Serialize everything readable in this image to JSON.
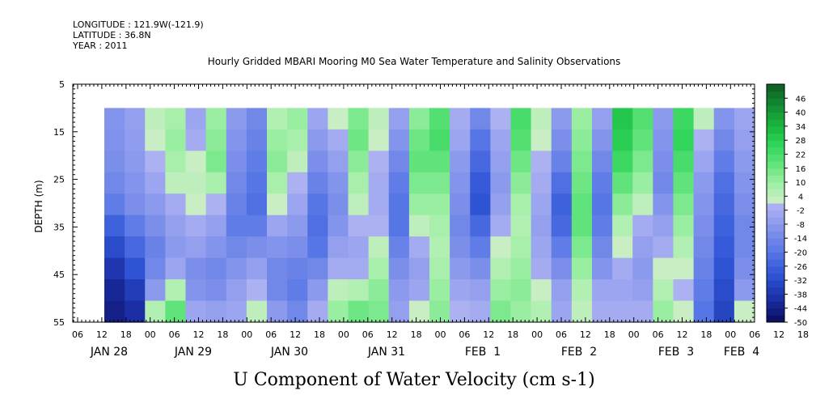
{
  "header": {
    "longitude": "LONGITUDE : 121.9W(-121.9)",
    "latitude": "LATITUDE : 36.8N",
    "year": "YEAR : 2011"
  },
  "chart_data": {
    "type": "heatmap",
    "title": "Hourly Gridded MBARI Mooring M0 Sea Water Temperature and Salinity Observations",
    "xlabel": "U Component of Water Velocity (cm s-1)",
    "ylabel": "DEPTH (m)",
    "ylim": [
      55,
      5
    ],
    "y_ticks": [
      5,
      15,
      25,
      35,
      45,
      55
    ],
    "data_depth_range": [
      10,
      55
    ],
    "x_hour_ticks": [
      "06",
      "12",
      "18",
      "00",
      "06",
      "12",
      "18",
      "00",
      "06",
      "12",
      "18",
      "00",
      "06",
      "12",
      "18",
      "00",
      "06",
      "12",
      "18",
      "00",
      "06",
      "12",
      "18",
      "00",
      "06",
      "12",
      "18",
      "00",
      "06",
      "12",
      "18",
      "00",
      "06"
    ],
    "x_day_labels": [
      "JAN 28",
      "JAN 29",
      "JAN 30",
      "JAN 31",
      "FEB  1",
      "FEB  2",
      "FEB  3",
      "FEB  4"
    ],
    "data_start": "JAN 28 12",
    "colorbar": {
      "labels": [
        "46",
        "40",
        "34",
        "28",
        "22",
        "16",
        "10",
        "4",
        "-2",
        "-8",
        "-14",
        "-20",
        "-26",
        "-32",
        "-38",
        "-44",
        "-50"
      ],
      "range": [
        -50,
        52
      ],
      "step": 3,
      "negative_colors": [
        "#0b0b5e",
        "#1b2fa6",
        "#2f55d6",
        "#5a78e6",
        "#8796ec",
        "#b0b4f2"
      ],
      "positive_colors": [
        "#cfeec8",
        "#9eefa4",
        "#5fe37a",
        "#2ed458",
        "#18b23c",
        "#138a33",
        "#0e5b22"
      ]
    },
    "columns": [
      {
        "v": [
          -10,
          -11,
          -12,
          -14,
          -18,
          -26,
          -32,
          -38,
          -42,
          -44
        ]
      },
      {
        "v": [
          -6,
          -7,
          -8,
          -10,
          -12,
          -18,
          -24,
          -30,
          -36,
          -40
        ]
      },
      {
        "v": [
          4,
          2,
          0,
          -4,
          -8,
          -12,
          -16,
          -14,
          -8,
          6
        ]
      },
      {
        "v": [
          8,
          10,
          8,
          4,
          -2,
          -6,
          -8,
          -4,
          6,
          18
        ]
      },
      {
        "v": [
          -4,
          -2,
          2,
          4,
          2,
          -2,
          -6,
          -12,
          -10,
          -4
        ]
      },
      {
        "v": [
          10,
          12,
          14,
          8,
          0,
          -6,
          -10,
          -14,
          -12,
          -6
        ]
      },
      {
        "v": [
          -8,
          -10,
          -12,
          -14,
          -16,
          -18,
          -14,
          -10,
          -6,
          -4
        ]
      },
      {
        "v": [
          -14,
          -16,
          -18,
          -20,
          -22,
          -18,
          -12,
          -6,
          0,
          4
        ]
      },
      {
        "v": [
          6,
          10,
          12,
          8,
          2,
          -4,
          -10,
          -14,
          -14,
          -8
        ]
      },
      {
        "v": [
          10,
          8,
          4,
          0,
          -4,
          -8,
          -12,
          -16,
          -18,
          -14
        ]
      },
      {
        "v": [
          -4,
          -8,
          -12,
          -16,
          -20,
          -22,
          -20,
          -14,
          -8,
          -2
        ]
      },
      {
        "v": [
          2,
          -2,
          -6,
          -10,
          -12,
          -10,
          -6,
          -2,
          4,
          10
        ]
      },
      {
        "v": [
          14,
          16,
          12,
          8,
          4,
          0,
          -4,
          -2,
          6,
          16
        ]
      },
      {
        "v": [
          4,
          2,
          0,
          -2,
          -2,
          0,
          4,
          8,
          12,
          14
        ]
      },
      {
        "v": [
          -6,
          -10,
          -14,
          -18,
          -20,
          -20,
          -16,
          -12,
          -8,
          -6
        ]
      },
      {
        "v": [
          12,
          16,
          18,
          14,
          10,
          4,
          -2,
          -6,
          -4,
          2
        ]
      },
      {
        "v": [
          20,
          22,
          18,
          14,
          10,
          8,
          6,
          8,
          10,
          12
        ]
      },
      {
        "v": [
          -2,
          -4,
          -8,
          -10,
          -12,
          -14,
          -12,
          -8,
          -4,
          0
        ]
      },
      {
        "v": [
          -14,
          -20,
          -24,
          -28,
          -30,
          -24,
          -18,
          -12,
          -6,
          -2
        ]
      },
      {
        "v": [
          0,
          -4,
          -6,
          -8,
          -6,
          -2,
          2,
          6,
          10,
          14
        ]
      },
      {
        "v": [
          22,
          20,
          16,
          12,
          8,
          6,
          8,
          10,
          12,
          10
        ]
      },
      {
        "v": [
          4,
          2,
          0,
          -2,
          -4,
          -6,
          -4,
          -2,
          2,
          6
        ]
      },
      {
        "v": [
          -8,
          -12,
          -16,
          -22,
          -26,
          -24,
          -18,
          -12,
          -6,
          -4
        ]
      },
      {
        "v": [
          10,
          12,
          14,
          16,
          18,
          18,
          14,
          10,
          6,
          4
        ]
      },
      {
        "v": [
          -6,
          -10,
          -14,
          -18,
          -20,
          -18,
          -14,
          -10,
          -4,
          -2
        ]
      },
      {
        "v": [
          30,
          28,
          24,
          18,
          12,
          6,
          2,
          -2,
          -4,
          -2
        ]
      },
      {
        "v": [
          20,
          18,
          14,
          10,
          4,
          -2,
          -6,
          -8,
          -6,
          -2
        ]
      },
      {
        "v": [
          -8,
          -10,
          -12,
          -14,
          -10,
          -6,
          -2,
          2,
          6,
          10
        ]
      },
      {
        "v": [
          24,
          26,
          22,
          18,
          14,
          10,
          6,
          2,
          0,
          2
        ]
      },
      {
        "v": [
          4,
          0,
          -4,
          -8,
          -10,
          -12,
          -14,
          -16,
          -18,
          -20
        ]
      },
      {
        "v": [
          -10,
          -14,
          -18,
          -22,
          -24,
          -26,
          -28,
          -30,
          -32,
          -34
        ]
      },
      {
        "v": [
          -4,
          -6,
          -8,
          -10,
          -12,
          -14,
          -14,
          -12,
          -8,
          2
        ]
      }
    ]
  }
}
